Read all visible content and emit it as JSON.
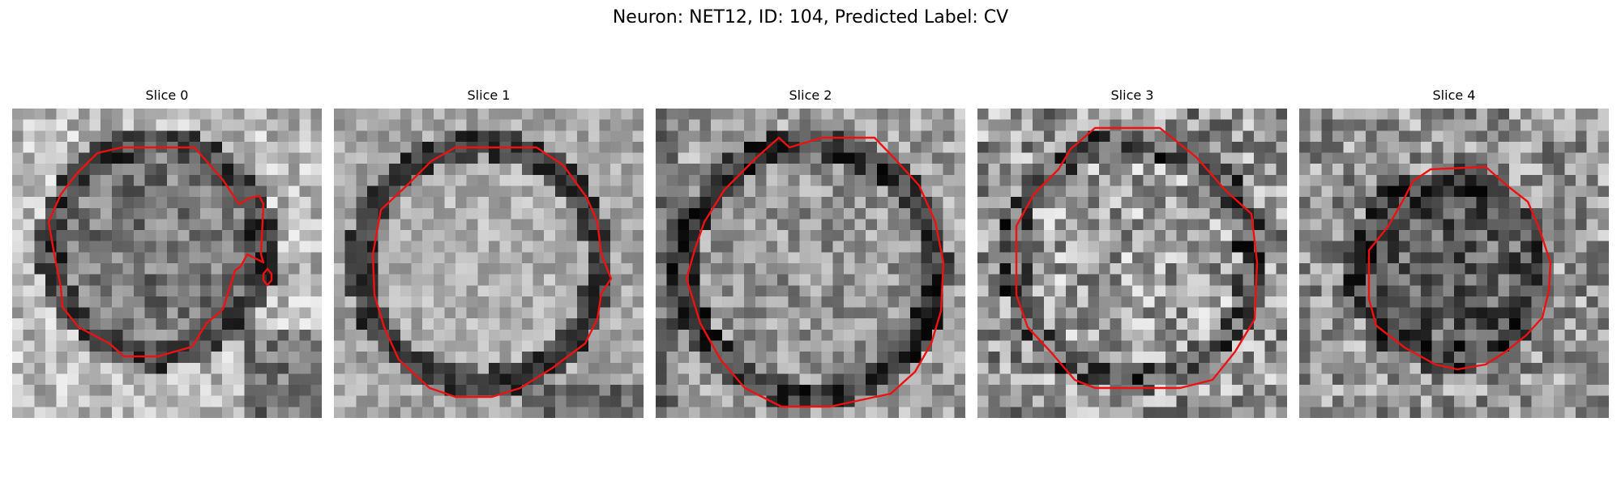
{
  "figure": {
    "title": "Neuron: NET12, ID: 104, Predicted Label: CV"
  },
  "contour_color": "#ee1111",
  "colormap": "grayscale",
  "slices": [
    {
      "title": "Slice 0"
    },
    {
      "title": "Slice 1"
    },
    {
      "title": "Slice 2"
    },
    {
      "title": "Slice 3"
    },
    {
      "title": "Slice 4"
    }
  ]
}
